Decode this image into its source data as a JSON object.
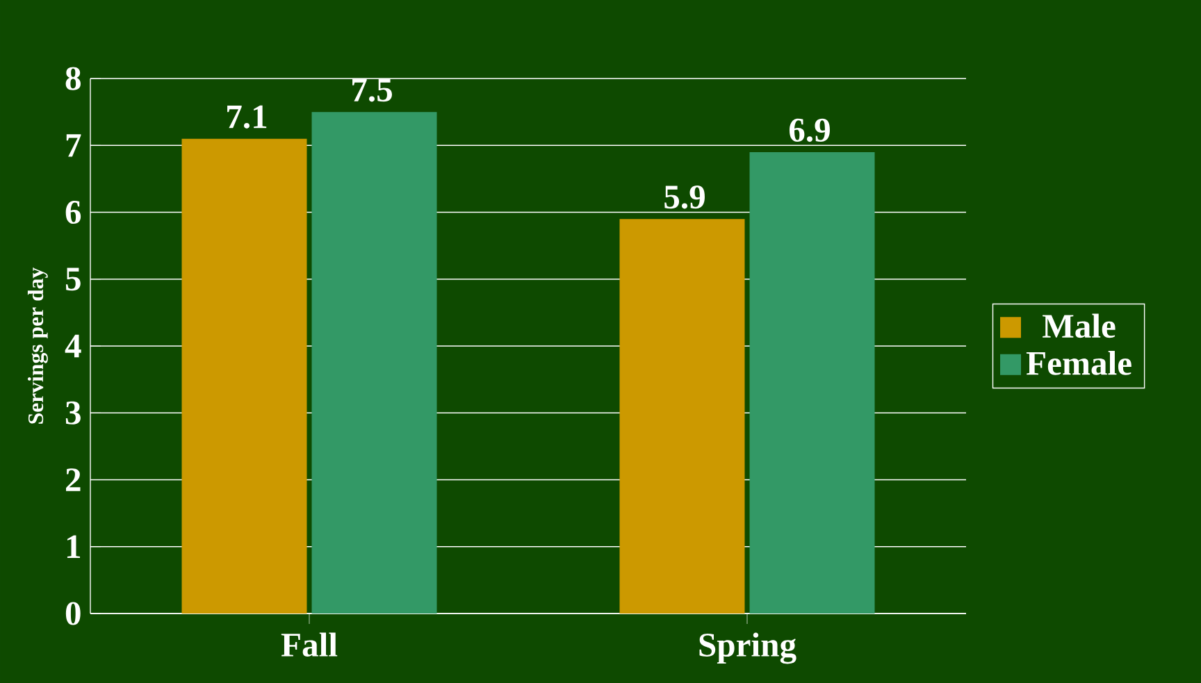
{
  "chart_data": {
    "type": "bar",
    "ylabel": "Servings per day",
    "categories": [
      "Fall",
      "Spring"
    ],
    "series": [
      {
        "name": "Male",
        "color": "#cc9900",
        "values": [
          7.1,
          5.9
        ]
      },
      {
        "name": "Female",
        "color": "#339966",
        "values": [
          7.5,
          6.9
        ]
      }
    ],
    "ylim": [
      0,
      8
    ],
    "yticks": [
      0,
      1,
      2,
      3,
      4,
      5,
      6,
      7,
      8
    ],
    "grid": "y",
    "legend": "right",
    "data_labels": true
  }
}
